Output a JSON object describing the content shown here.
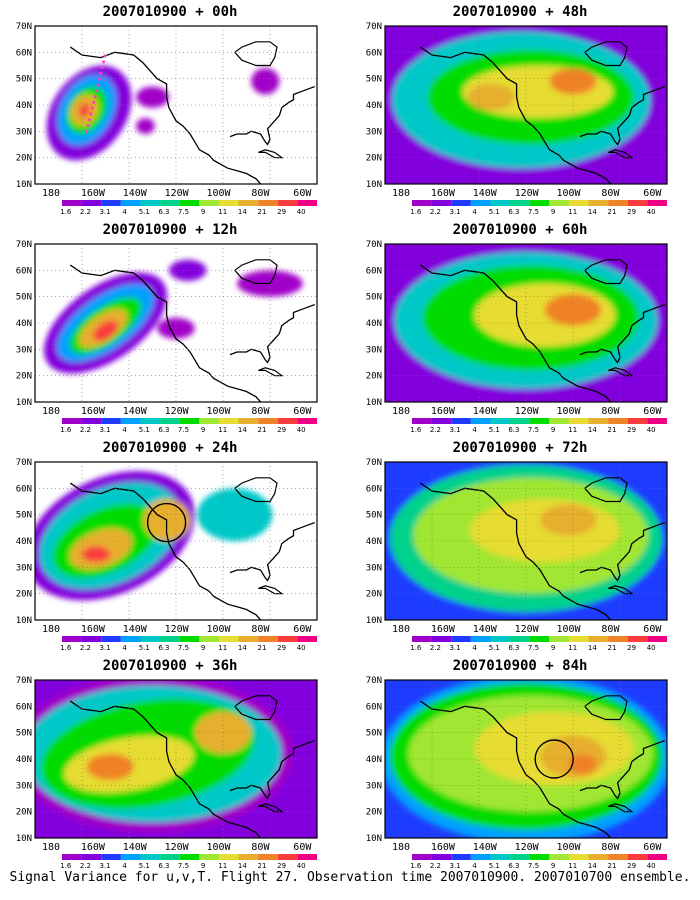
{
  "y_ticks": [
    "70N",
    "60N",
    "50N",
    "40N",
    "30N",
    "20N",
    "10N"
  ],
  "x_ticks": [
    "180",
    "160W",
    "140W",
    "120W",
    "100W",
    "80W",
    "60W"
  ],
  "colorbar_labels": [
    "1.6",
    "2.2",
    "3.1",
    "4",
    "5.1",
    "6.3",
    "7.5",
    "9",
    "11",
    "14",
    "21",
    "29",
    "40"
  ],
  "colorbar_colors": [
    "#a000c8",
    "#8200dc",
    "#1e3cff",
    "#00a0ff",
    "#00c8c8",
    "#00d28c",
    "#00dc00",
    "#a0e632",
    "#e6dc32",
    "#e6af2d",
    "#f08228",
    "#fa3c3c",
    "#f00082"
  ],
  "footer": "Signal Variance for u,v,T. Flight 27. Observation time 2007010900. 2007010700 ensemble.",
  "panels": [
    {
      "title": "2007010900 + 00h",
      "hours": 0,
      "col": 0,
      "row": 0
    },
    {
      "title": "2007010900 + 12h",
      "hours": 12,
      "col": 0,
      "row": 1
    },
    {
      "title": "2007010900 + 24h",
      "hours": 24,
      "col": 0,
      "row": 2
    },
    {
      "title": "2007010900 + 36h",
      "hours": 36,
      "col": 0,
      "row": 3
    },
    {
      "title": "2007010900 + 48h",
      "hours": 48,
      "col": 1,
      "row": 0
    },
    {
      "title": "2007010900 + 60h",
      "hours": 60,
      "col": 1,
      "row": 1
    },
    {
      "title": "2007010900 + 72h",
      "hours": 72,
      "col": 1,
      "row": 2
    },
    {
      "title": "2007010900 + 84h",
      "hours": 84,
      "col": 1,
      "row": 3
    }
  ]
}
